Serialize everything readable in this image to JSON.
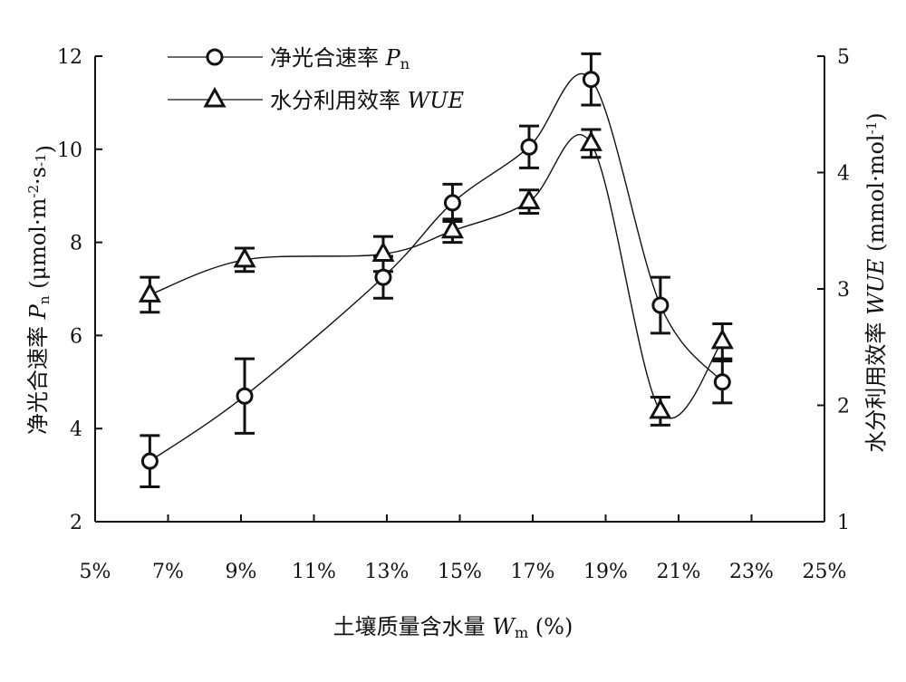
{
  "chart_data": {
    "type": "line",
    "xlabel": "土壤质量含水量 Wm (%)",
    "ylabel_left": "净光合速率 Pn (μmol·m⁻²·s⁻¹)",
    "ylabel_right": "水分利用效率 WUE (mmol·mol⁻¹)",
    "xlim": [
      5,
      25
    ],
    "ylim_left": [
      2,
      12
    ],
    "ylim_right": [
      1,
      5
    ],
    "x_ticks": [
      5,
      7,
      9,
      11,
      13,
      15,
      17,
      19,
      21,
      23,
      25
    ],
    "x_tick_labels": [
      "5%",
      "7%",
      "9%",
      "11%",
      "13%",
      "15%",
      "17%",
      "19%",
      "21%",
      "23%",
      "25%"
    ],
    "y_left_ticks": [
      2,
      4,
      6,
      8,
      10,
      12
    ],
    "y_right_ticks": [
      1,
      2,
      3,
      4,
      5
    ],
    "grid": false,
    "legend_position": "top-left",
    "series": [
      {
        "name": "净光合速率 Pn",
        "axis": "left",
        "marker": "circle",
        "x": [
          6.5,
          9.1,
          12.9,
          14.8,
          16.9,
          18.6,
          20.5,
          22.2
        ],
        "y": [
          3.3,
          4.7,
          7.25,
          8.85,
          10.05,
          11.5,
          6.65,
          5.0
        ],
        "err": [
          0.55,
          0.8,
          0.45,
          0.4,
          0.45,
          0.55,
          0.6,
          0.45
        ]
      },
      {
        "name": "水分利用效率 WUE",
        "axis": "right",
        "marker": "triangle",
        "x": [
          6.5,
          9.1,
          12.9,
          14.8,
          16.9,
          18.6,
          20.5,
          22.2
        ],
        "y": [
          2.95,
          3.25,
          3.3,
          3.5,
          3.75,
          4.25,
          1.95,
          2.55
        ],
        "err": [
          0.15,
          0.1,
          0.15,
          0.1,
          0.1,
          0.12,
          0.12,
          0.15
        ]
      }
    ]
  },
  "labels": {
    "xlabel_main": "土壤质量含水量 ",
    "xlabel_symbol": "W",
    "xlabel_sub": "m",
    "xlabel_unit": " (%)",
    "ylabel_left_main": "净光合速率 ",
    "ylabel_left_symbol": "P",
    "ylabel_left_sub": "n",
    "ylabel_left_unit1": " (μmol·m",
    "ylabel_left_sup1": "-2",
    "ylabel_left_unit2": "·s",
    "ylabel_left_sup2": "-1",
    "ylabel_left_unit3": ")",
    "ylabel_right_main": "水分利用效率 ",
    "ylabel_right_symbol": "WUE",
    "ylabel_right_unit1": " (mmol·mol",
    "ylabel_right_sup": "-1",
    "ylabel_right_unit2": ")",
    "legend1_main": "净光合速率 ",
    "legend1_symbol": "P",
    "legend1_sub": "n",
    "legend2_main": "水分利用效率 ",
    "legend2_symbol": "WUE"
  }
}
